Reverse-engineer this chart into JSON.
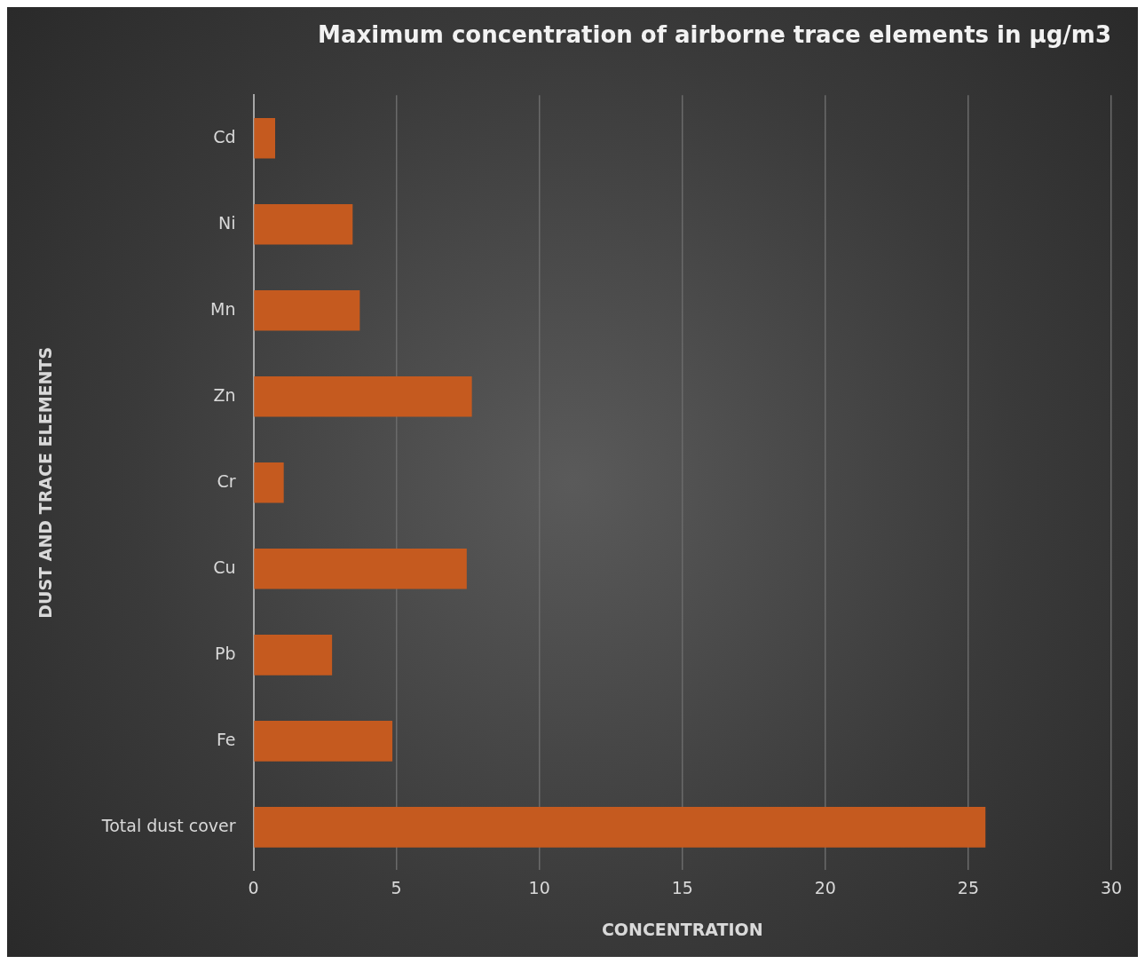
{
  "chart_data": {
    "type": "bar",
    "orientation": "horizontal",
    "title": "Maximum concentration of airborne trace elements in µg/m3",
    "xlabel": "CONCENTRATION",
    "ylabel": "DUST AND TRACE ELEMENTS",
    "categories": [
      "Cd",
      "Ni",
      "Mn",
      "Zn",
      "Cr",
      "Cu",
      "Pb",
      "Fe",
      "Total dust cover"
    ],
    "values": [
      0.76,
      3.47,
      3.72,
      7.64,
      1.06,
      7.46,
      2.75,
      4.86,
      25.6
    ],
    "color": "#c55a1f",
    "xlim": [
      0,
      30
    ],
    "xticks": [
      0,
      5,
      10,
      15,
      20,
      25,
      30
    ],
    "grid": "x",
    "legend": false
  }
}
